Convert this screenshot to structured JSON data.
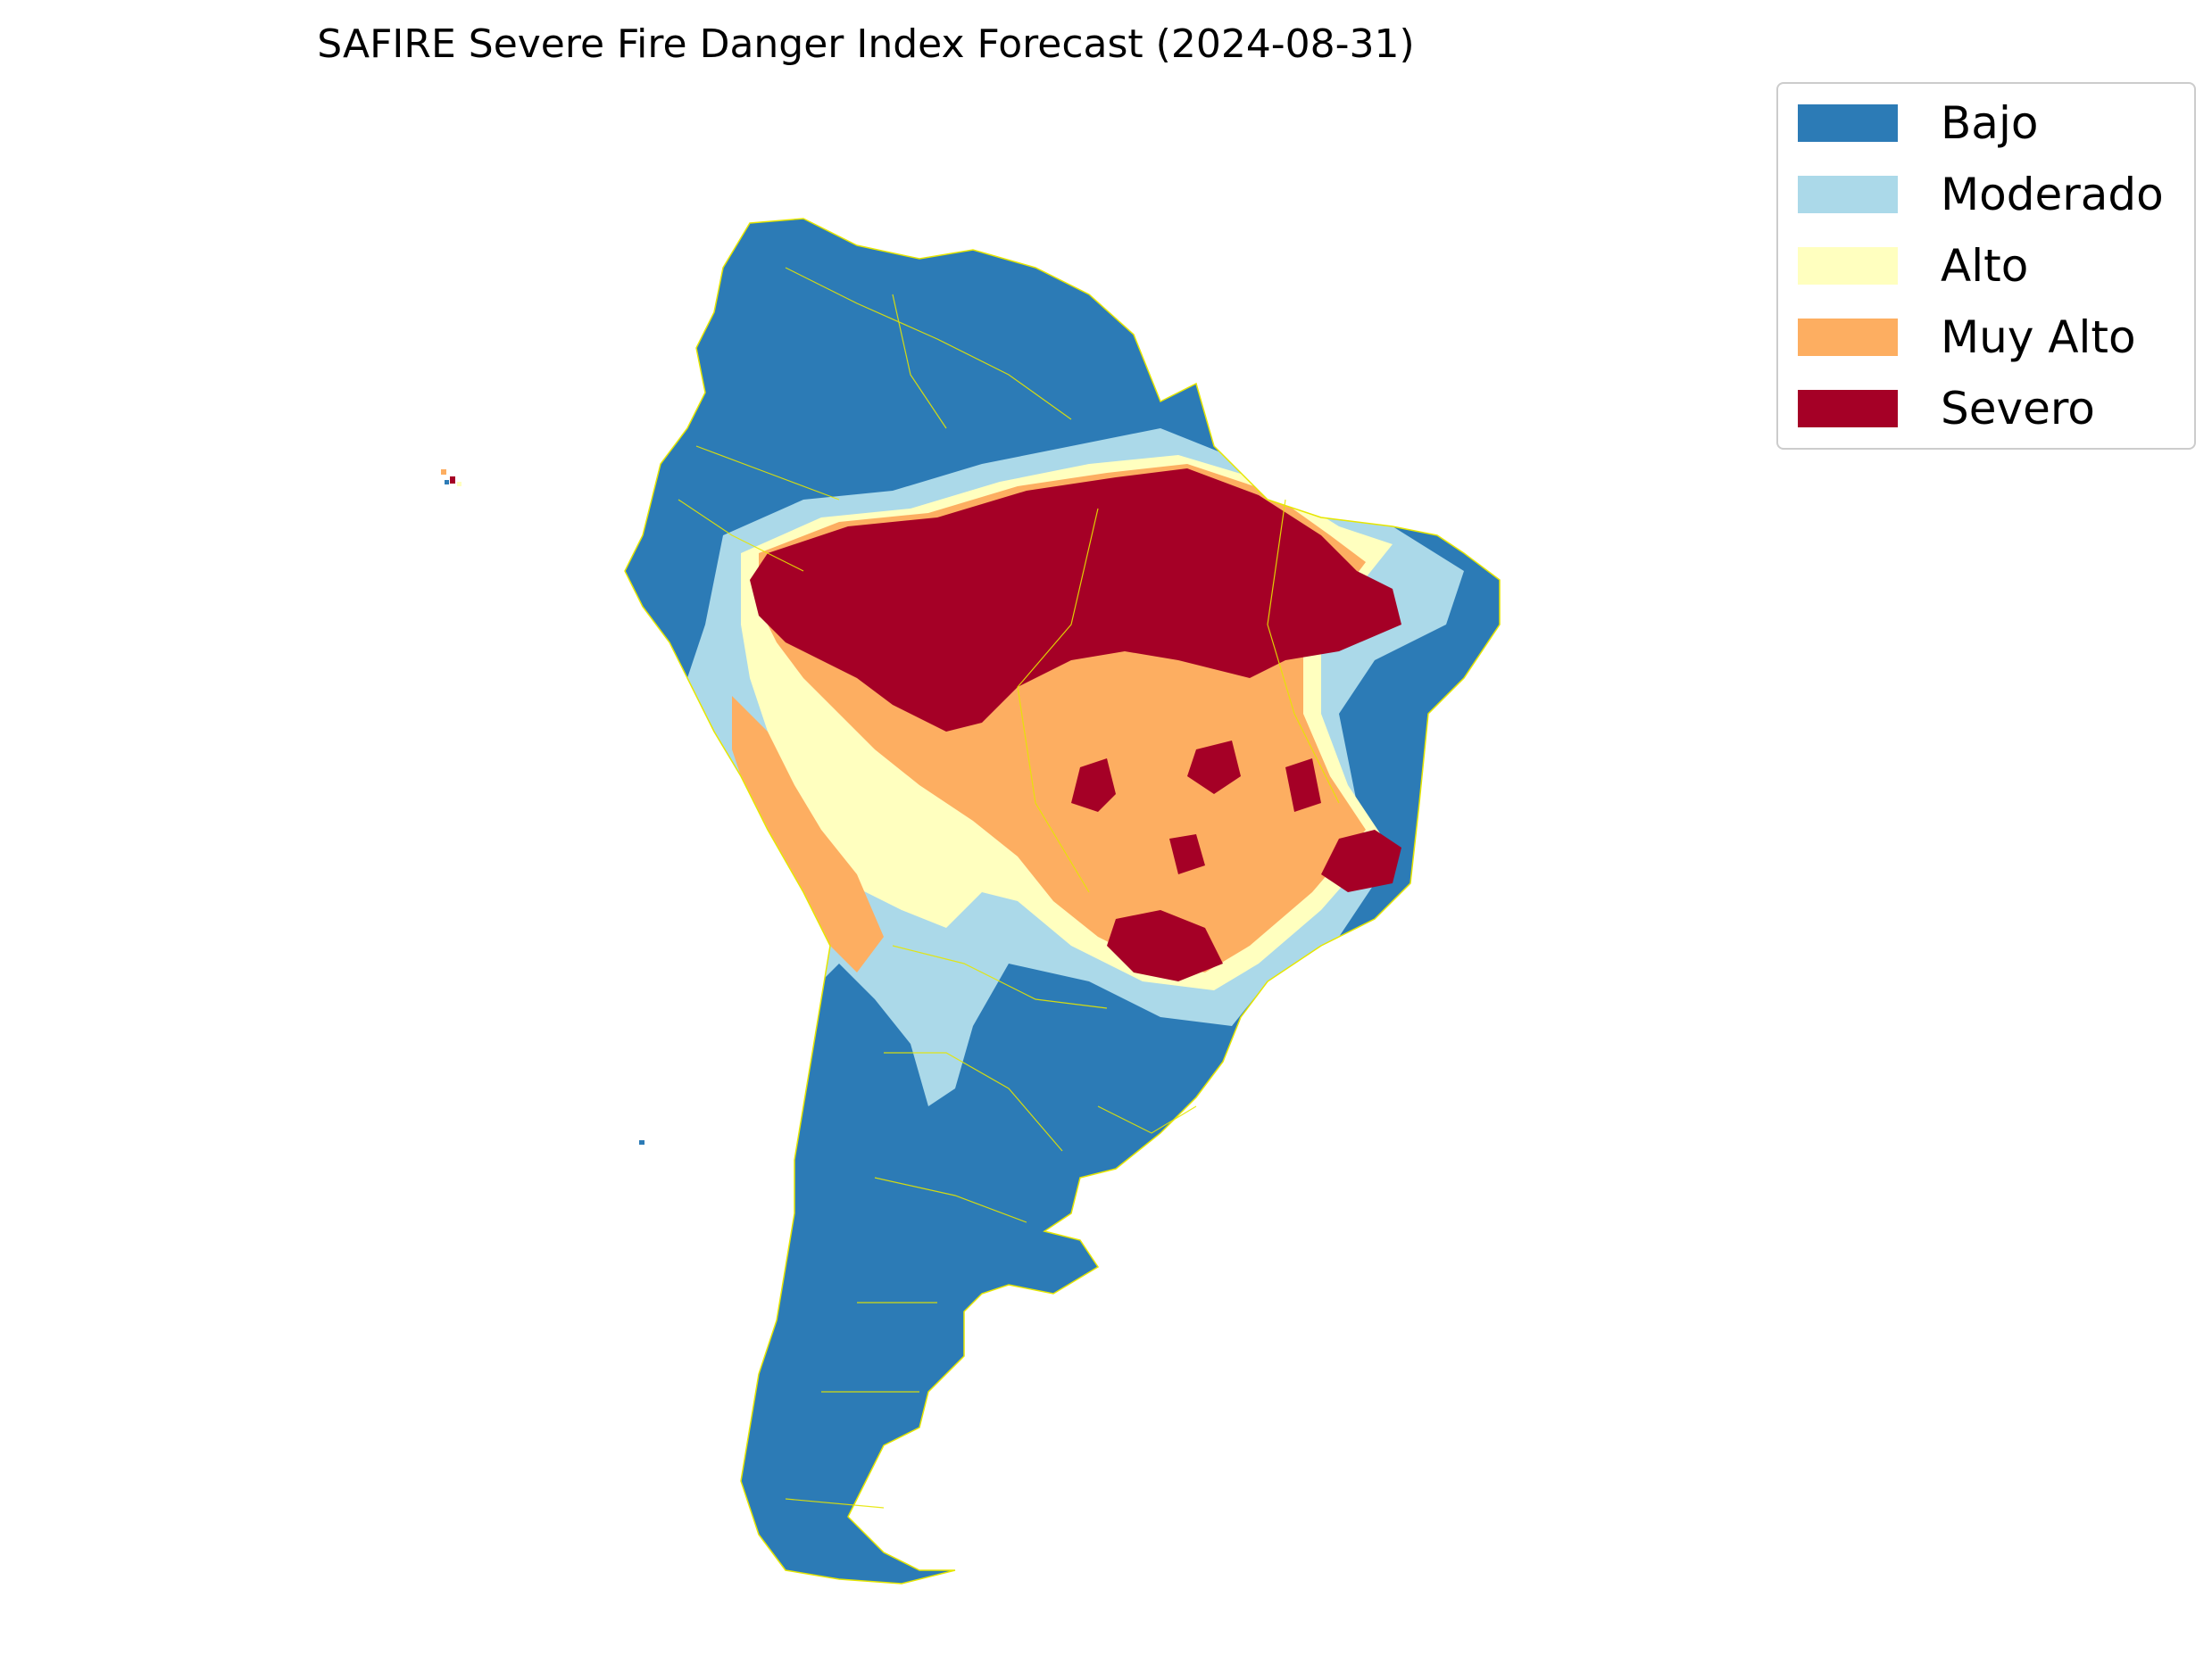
{
  "map": {
    "title": "SAFIRE Severe Fire Danger Index Forecast (2024-08-31)",
    "region": "South America",
    "borders_color": "#e6e600",
    "legend_position": "top-right",
    "categories": [
      {
        "label": "Bajo",
        "color": "#2c7bb6"
      },
      {
        "label": "Moderado",
        "color": "#abd9e9"
      },
      {
        "label": "Alto",
        "color": "#ffffbf"
      },
      {
        "label": "Muy Alto",
        "color": "#fdae61"
      },
      {
        "label": "Severo",
        "color": "#a50026"
      }
    ]
  }
}
